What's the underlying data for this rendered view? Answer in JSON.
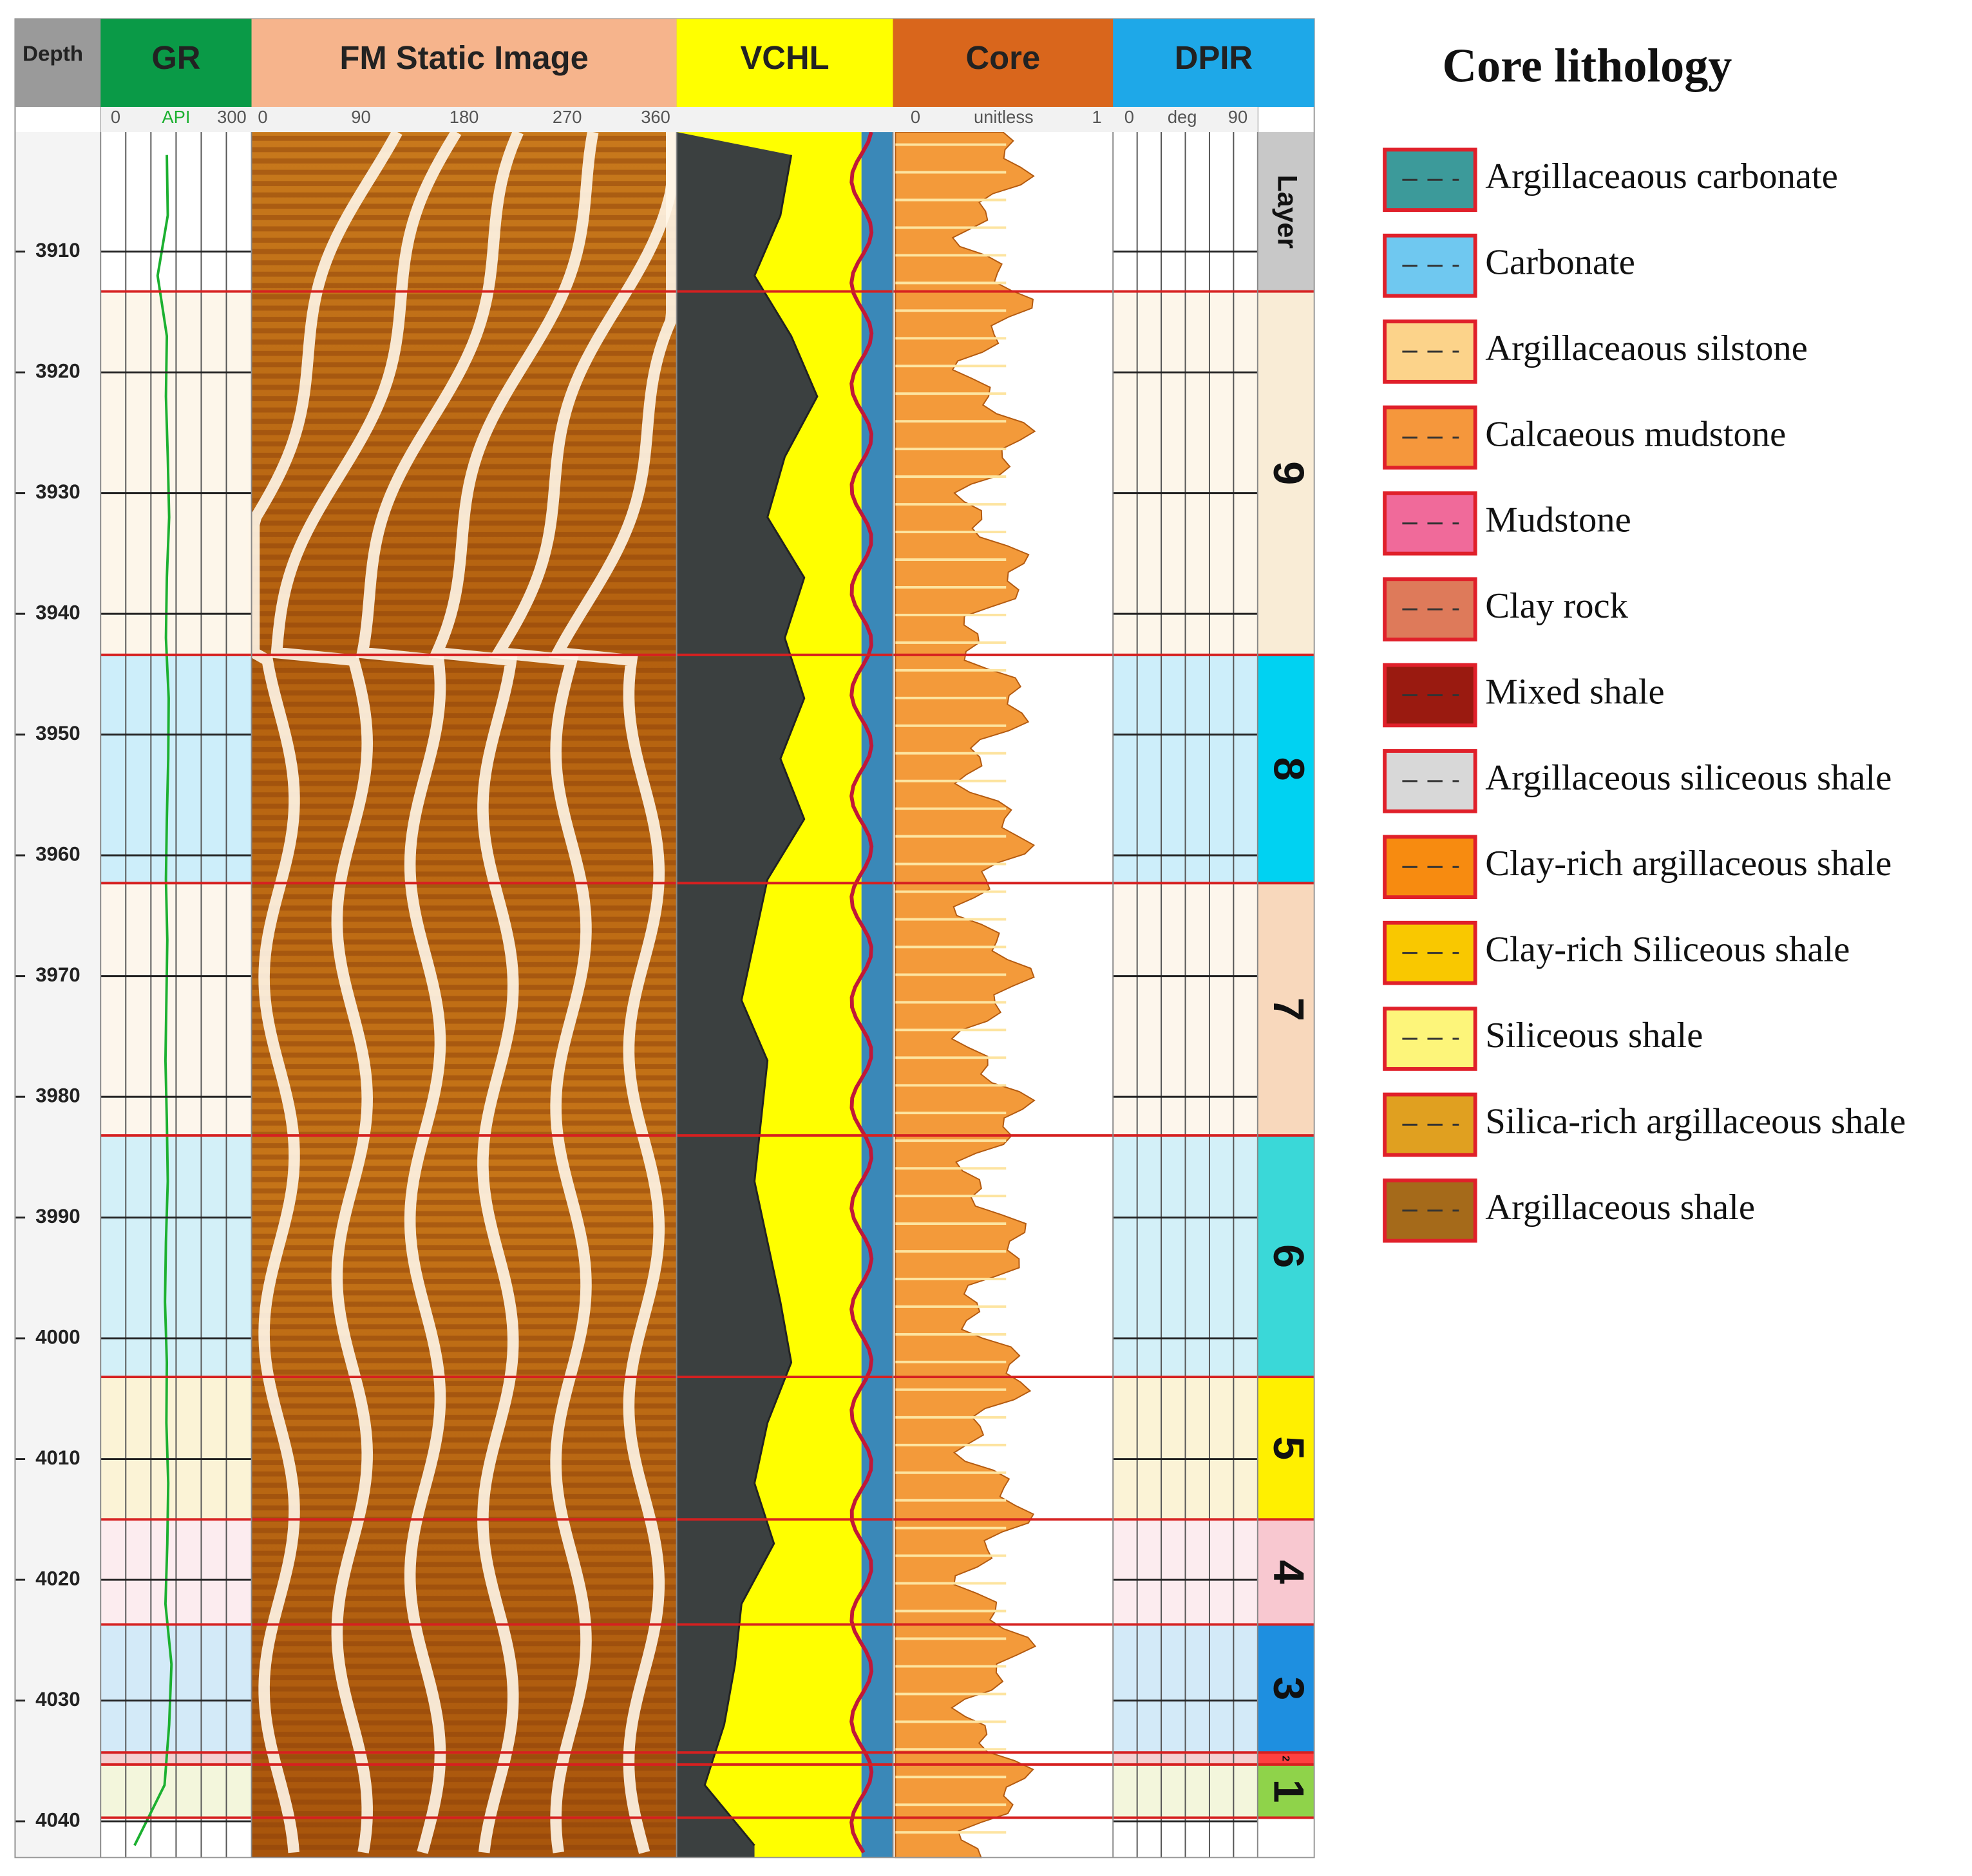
{
  "header": {
    "depth": "Depth",
    "gr": {
      "name": "GR",
      "unit": "API",
      "color": "#0a9a47"
    },
    "image": {
      "name": "FM Static Image",
      "ticks": [
        0,
        90,
        180,
        270,
        360
      ],
      "color": "#f6b48c"
    },
    "vchl": {
      "name": "VCHL",
      "color": "#ffff00"
    },
    "core": {
      "name": "Core",
      "unit": "unitless",
      "xlim": [
        0,
        1
      ],
      "color": "#d9661c"
    },
    "dpir": {
      "name": "DPIR",
      "unit": "deg",
      "xlim": [
        0,
        90
      ],
      "color": "#1ea8e8"
    }
  },
  "depth_axis": {
    "ylim": [
      3900.1,
      4043
    ],
    "yticks": [
      3910,
      3920,
      3930,
      3940,
      3950,
      3960,
      3970,
      3980,
      3990,
      4000,
      4010,
      4020,
      4030,
      4040
    ]
  },
  "samples": {
    "depth": [
      3902,
      3907,
      3912,
      3917,
      3922,
      3927,
      3932,
      3937,
      3942,
      3947,
      3952,
      3957,
      3962,
      3967,
      3972,
      3977,
      3982,
      3987,
      3992,
      3997,
      4002,
      4007,
      4012,
      4017,
      4022,
      4027,
      4032,
      4037,
      4042
    ],
    "gr_xlim": [
      0,
      300
    ],
    "gr": [
      130,
      132,
      110,
      130,
      128,
      132,
      135,
      130,
      128,
      134,
      133,
      130,
      128,
      131,
      129,
      127,
      130,
      132,
      128,
      126,
      130,
      129,
      133,
      131,
      127,
      140,
      135,
      125,
      60
    ],
    "vchl_xlim": [
      0,
      1
    ],
    "vchl": [
      0.53,
      0.48,
      0.36,
      0.53,
      0.65,
      0.5,
      0.42,
      0.59,
      0.5,
      0.59,
      0.48,
      0.59,
      0.42,
      0.36,
      0.3,
      0.42,
      0.39,
      0.36,
      0.42,
      0.48,
      0.53,
      0.42,
      0.36,
      0.45,
      0.3,
      0.27,
      0.22,
      0.13,
      0.36
    ]
  },
  "layers": [
    {
      "label": "Layer",
      "top": 3900.1,
      "bottom": 3913.3,
      "color": "#c8c8c8",
      "band": "#ffffff"
    },
    {
      "label": "9",
      "top": 3913.3,
      "bottom": 3943.4,
      "color": "#f9ecd6",
      "band": "#fdf6ea"
    },
    {
      "label": "8",
      "top": 3943.4,
      "bottom": 3962.3,
      "color": "#00d2f2",
      "band": "#cdeefa"
    },
    {
      "label": "7",
      "top": 3962.3,
      "bottom": 3983.2,
      "color": "#f8d8bc",
      "band": "#fdf6ec"
    },
    {
      "label": "6",
      "top": 3983.2,
      "bottom": 4003.2,
      "color": "#3ad8d8",
      "band": "#d3f0f8"
    },
    {
      "label": "5",
      "top": 4003.2,
      "bottom": 4015,
      "color": "#fff000",
      "band": "#fbf3d6"
    },
    {
      "label": "4",
      "top": 4015,
      "bottom": 4023.7,
      "color": "#f8c8d0",
      "band": "#fcecef"
    },
    {
      "label": "3",
      "top": 4023.7,
      "bottom": 4034.3,
      "color": "#1e8fe0",
      "band": "#d3eaf8"
    },
    {
      "label": "2",
      "top": 4034.3,
      "bottom": 4035.3,
      "color": "#ff4040",
      "band": "#f4d0d0"
    },
    {
      "label": "1",
      "top": 4035.3,
      "bottom": 4039.7,
      "color": "#8fd34a",
      "band": "#f3f6dc"
    }
  ],
  "legend": {
    "title": "Core lithology",
    "items": [
      {
        "label": "Argillaceaous carbonate",
        "color": "#3c9a9a"
      },
      {
        "label": "Carbonate",
        "color": "#6fc8f0"
      },
      {
        "label": "Argillaceaous silstone",
        "color": "#fcd38a"
      },
      {
        "label": "Calcaeous mudstone",
        "color": "#f5973c"
      },
      {
        "label": "Mudstone",
        "color": "#f06a9a"
      },
      {
        "label": "Clay rock",
        "color": "#de7a5a"
      },
      {
        "label": "Mixed shale",
        "color": "#9a1a10"
      },
      {
        "label": "Argillaceous siliceous shale",
        "color": "#d8d8d8"
      },
      {
        "label": "Clay-rich argillaceous shale",
        "color": "#f78b10"
      },
      {
        "label": "Clay-rich Siliceous shale",
        "color": "#f9c800"
      },
      {
        "label": "Siliceous shale",
        "color": "#fdf57a"
      },
      {
        "label": "Silica-rich argillaceous shale",
        "color": "#e0a020"
      },
      {
        "label": "Argillaceous shale",
        "color": "#a56a1a"
      }
    ]
  }
}
